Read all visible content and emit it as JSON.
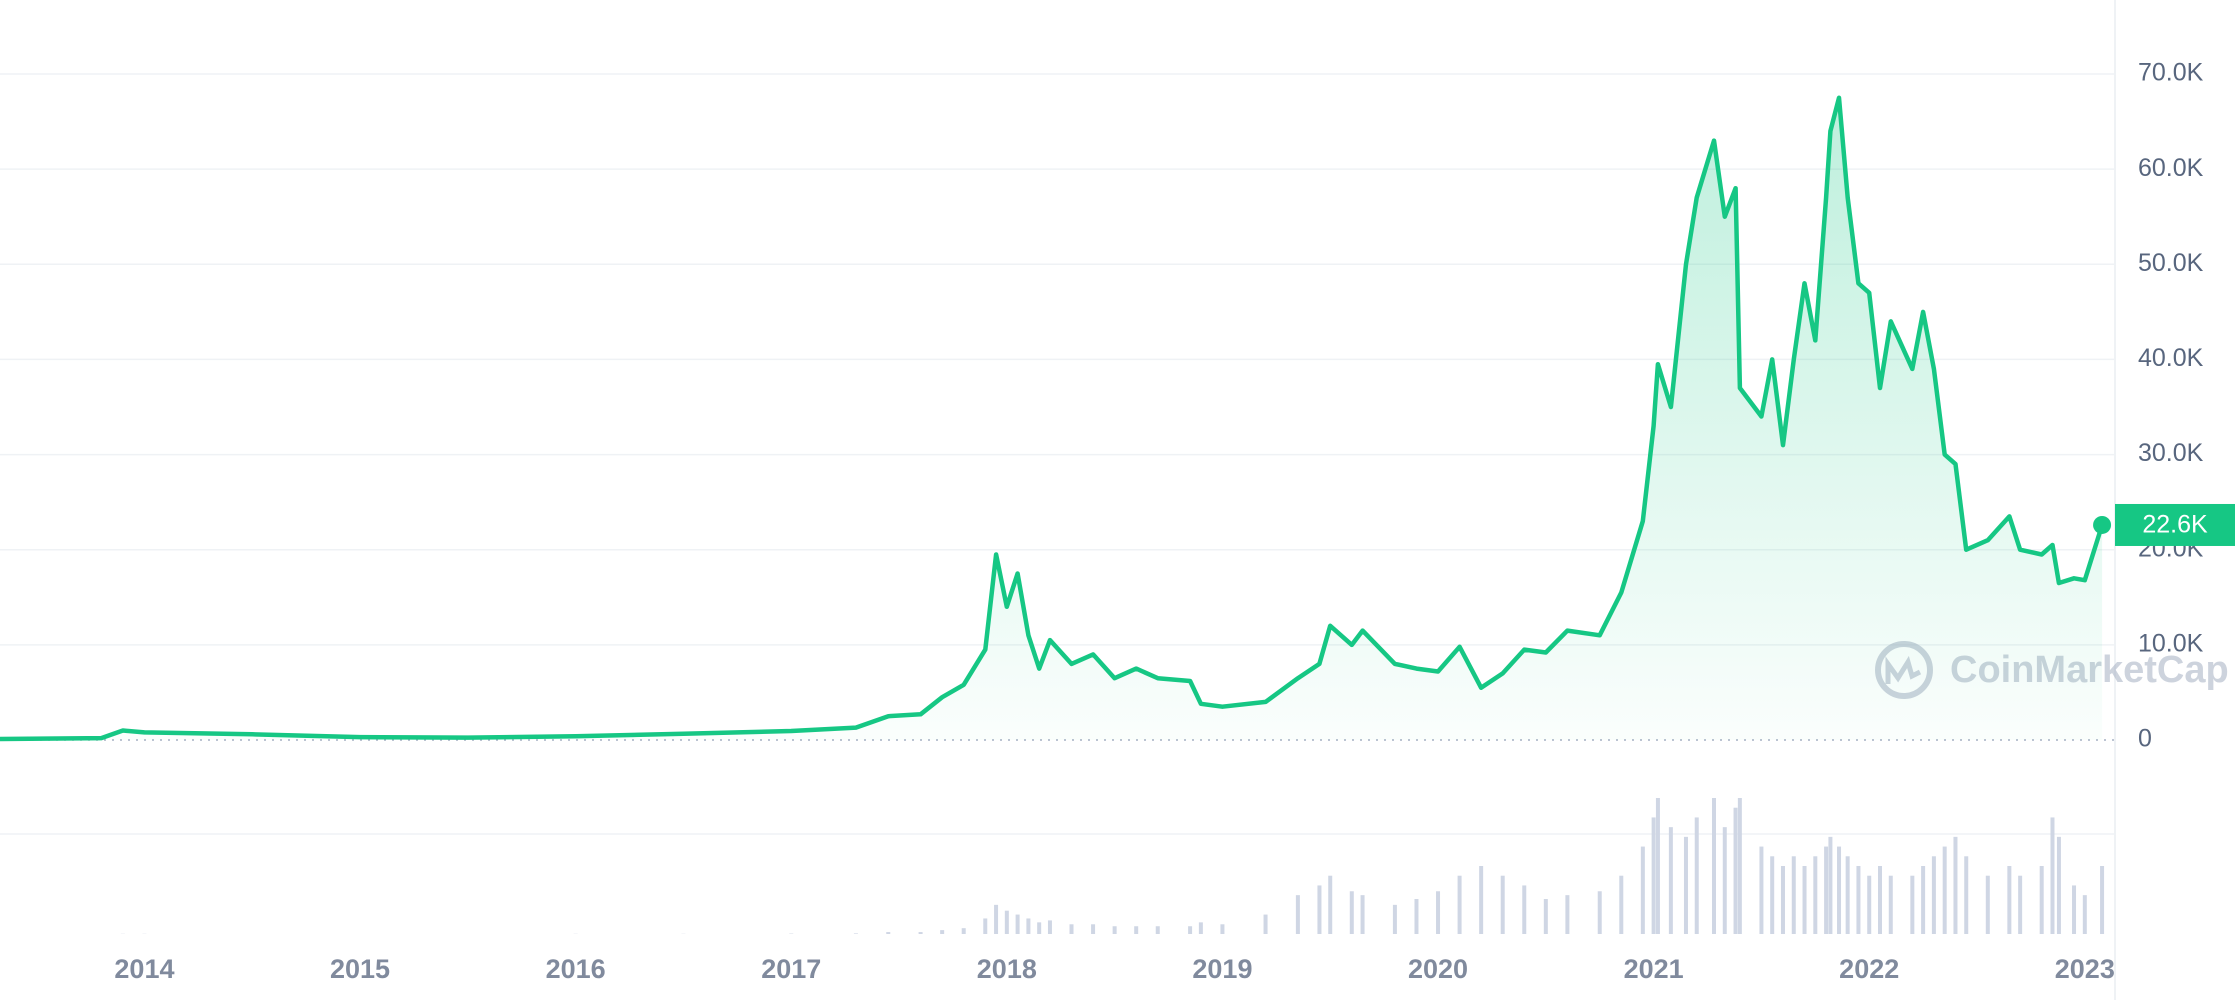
{
  "chart_data": {
    "type": "line",
    "color": "#16c784",
    "x": [
      2013.33,
      2013.8,
      2013.9,
      2014.0,
      2014.5,
      2015.0,
      2015.5,
      2016.0,
      2016.5,
      2017.0,
      2017.3,
      2017.45,
      2017.6,
      2017.7,
      2017.8,
      2017.9,
      2017.95,
      2018.0,
      2018.05,
      2018.1,
      2018.15,
      2018.2,
      2018.3,
      2018.4,
      2018.5,
      2018.6,
      2018.7,
      2018.85,
      2018.9,
      2019.0,
      2019.2,
      2019.35,
      2019.45,
      2019.5,
      2019.6,
      2019.65,
      2019.8,
      2019.9,
      2020.0,
      2020.1,
      2020.2,
      2020.3,
      2020.4,
      2020.5,
      2020.6,
      2020.75,
      2020.85,
      2020.95,
      2021.0,
      2021.02,
      2021.08,
      2021.15,
      2021.2,
      2021.28,
      2021.33,
      2021.38,
      2021.4,
      2021.5,
      2021.55,
      2021.6,
      2021.65,
      2021.7,
      2021.75,
      2021.8,
      2021.82,
      2021.86,
      2021.9,
      2021.95,
      2022.0,
      2022.05,
      2022.1,
      2022.2,
      2022.25,
      2022.3,
      2022.35,
      2022.4,
      2022.45,
      2022.55,
      2022.65,
      2022.7,
      2022.8,
      2022.85,
      2022.88,
      2022.95,
      2023.0,
      2023.08
    ],
    "values": [
      100,
      200,
      1000,
      800,
      600,
      300,
      250,
      400,
      650,
      950,
      1300,
      2500,
      2700,
      4500,
      5800,
      9500,
      19500,
      14000,
      17500,
      11000,
      7500,
      10500,
      8000,
      9000,
      6500,
      7500,
      6500,
      6200,
      3800,
      3500,
      4000,
      6500,
      8000,
      12000,
      10000,
      11500,
      8000,
      7500,
      7200,
      9800,
      5500,
      7000,
      9500,
      9200,
      11500,
      11000,
      15500,
      23000,
      33000,
      39500,
      35000,
      50000,
      57000,
      63000,
      55000,
      58000,
      37000,
      34000,
      40000,
      31000,
      40000,
      48000,
      42000,
      57000,
      64000,
      67500,
      57000,
      48000,
      47000,
      37000,
      44000,
      39000,
      45000,
      39000,
      30000,
      29000,
      20000,
      21000,
      23500,
      20000,
      19500,
      20500,
      16500,
      17000,
      16800,
      22600
    ],
    "volume": [
      0,
      0,
      0.1,
      0.1,
      0,
      0,
      0,
      0.1,
      0.1,
      0.2,
      0.3,
      1,
      1,
      2,
      3,
      8,
      15,
      12,
      10,
      8,
      6,
      7,
      5,
      5,
      4,
      4,
      4,
      4,
      6,
      5,
      10,
      20,
      25,
      30,
      22,
      20,
      15,
      18,
      22,
      30,
      35,
      30,
      25,
      18,
      20,
      22,
      30,
      45,
      60,
      70,
      55,
      50,
      60,
      70,
      55,
      65,
      70,
      45,
      40,
      35,
      40,
      35,
      40,
      45,
      50,
      45,
      40,
      35,
      30,
      35,
      30,
      30,
      35,
      40,
      45,
      50,
      40,
      30,
      35,
      30,
      35,
      60,
      50,
      25,
      20,
      35
    ],
    "current": {
      "value": 22600,
      "label": "22.6K"
    },
    "xlim": [
      2013.33,
      2023.14
    ],
    "xticks": [
      2014,
      2015,
      2016,
      2017,
      2018,
      2019,
      2020,
      2021,
      2022,
      2023
    ],
    "ylim": [
      0,
      70000
    ],
    "yticks": [
      0,
      {
        "value": 10000,
        "label": "10.0K"
      },
      {
        "value": 20000,
        "label": "20.0K"
      },
      {
        "value": 30000,
        "label": "30.0K"
      },
      {
        "value": 40000,
        "label": "40.0K"
      },
      {
        "value": 50000,
        "label": "50.0K"
      },
      {
        "value": 60000,
        "label": "60.0K"
      },
      {
        "value": 70000,
        "label": "70.0K"
      }
    ],
    "grid": true,
    "watermark": "CoinMarketCap"
  }
}
